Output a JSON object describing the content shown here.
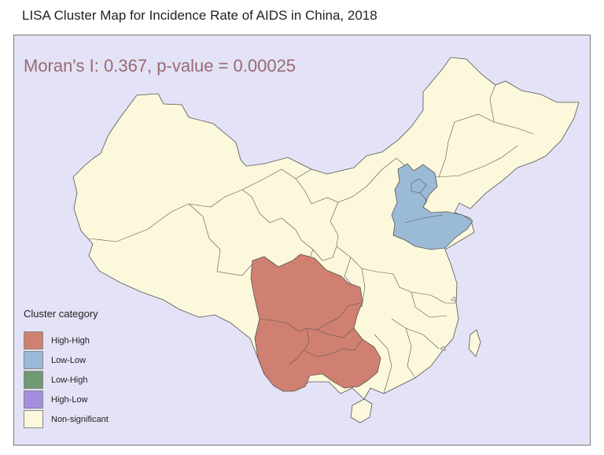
{
  "title": "LISA Cluster Map for Incidence Rate of AIDS in China, 2018",
  "moran_text": "Moran's I: 0.367, p-value = 0.00025",
  "legend": {
    "title": "Cluster category",
    "items": [
      {
        "label": "High-High",
        "color": "#d08070"
      },
      {
        "label": "Low-Low",
        "color": "#9bbad6"
      },
      {
        "label": "Low-High",
        "color": "#6f9a72"
      },
      {
        "label": "High-Low",
        "color": "#a48ee0"
      },
      {
        "label": "Non-significant",
        "color": "#fbf8dc"
      }
    ]
  },
  "colors": {
    "background": "#e3e2f6",
    "border": "#555555",
    "high_high": "#d08070",
    "low_low": "#9bbad6",
    "non_significant": "#fbf8dc"
  },
  "clusters": {
    "high_high": [
      "Sichuan",
      "Chongqing",
      "Yunnan",
      "Guizhou",
      "Guangxi"
    ],
    "low_low": [
      "Beijing",
      "Tianjin",
      "Hebei",
      "Shandong"
    ]
  }
}
